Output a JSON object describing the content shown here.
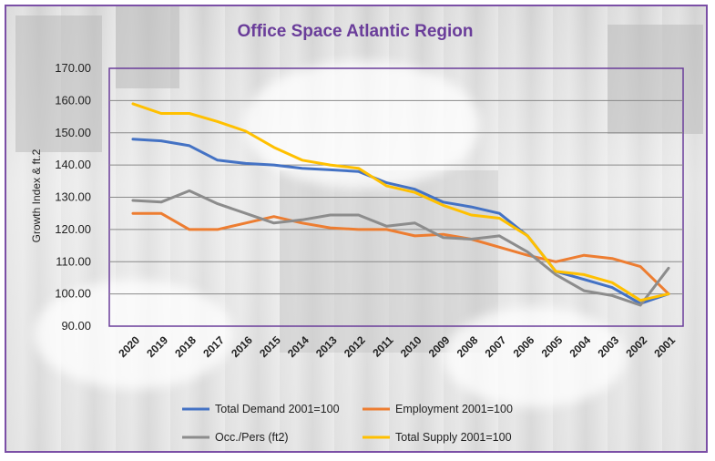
{
  "chart_data": {
    "type": "line",
    "title": "Office Space Atlantic Region",
    "ylabel": "Growth Index & ft.2",
    "xlabel": "",
    "ylim": [
      90,
      170
    ],
    "yticks": [
      "90.00",
      "100.00",
      "110.00",
      "120.00",
      "130.00",
      "140.00",
      "150.00",
      "160.00",
      "170.00"
    ],
    "categories": [
      "2020",
      "2019",
      "2018",
      "2017",
      "2016",
      "2015",
      "2014",
      "2013",
      "2012",
      "2011",
      "2010",
      "2009",
      "2008",
      "2007",
      "2006",
      "2005",
      "2004",
      "2003",
      "2002",
      "2001"
    ],
    "grid": true,
    "legend_position": "bottom",
    "series": [
      {
        "name": "Total Demand 2001=100",
        "color": "#4472c4",
        "values": [
          148,
          147.5,
          146,
          141.5,
          140.5,
          140,
          139,
          138.5,
          138,
          134.5,
          132.5,
          128.5,
          127,
          125,
          118,
          107,
          104.5,
          102,
          97,
          100
        ]
      },
      {
        "name": "Employment 2001=100",
        "color": "#ed7d31",
        "values": [
          125,
          125,
          120,
          120,
          122,
          124,
          122,
          120.5,
          120,
          120,
          118,
          118.5,
          117,
          114.5,
          112,
          110,
          112,
          111,
          108.5,
          100
        ]
      },
      {
        "name": "Occ./Pers (ft2)",
        "color": "#8c8c8c",
        "values": [
          129,
          128.5,
          132,
          128,
          125,
          122,
          123,
          124.5,
          124.5,
          121,
          122,
          117.5,
          117,
          118,
          113,
          106,
          101,
          99.5,
          96.5,
          108
        ]
      },
      {
        "name": "Total Supply 2001=100",
        "color": "#ffc000",
        "values": [
          159,
          156,
          156,
          153.5,
          150.5,
          145.5,
          141.5,
          140,
          139,
          133.5,
          131.5,
          127.5,
          124.5,
          123.5,
          118,
          107,
          106,
          103.5,
          98,
          100
        ]
      }
    ]
  }
}
